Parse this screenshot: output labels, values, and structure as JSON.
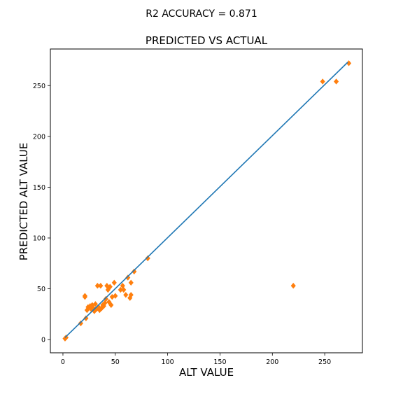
{
  "suptitle": "R2 ACCURACY = 0.871",
  "chart_data": {
    "type": "scatter",
    "title": "PREDICTED VS ACTUAL",
    "xlabel": "ALT VALUE",
    "ylabel": "PREDICTED ALT VALUE",
    "xlim": [
      -12,
      286
    ],
    "ylim": [
      -13,
      286
    ],
    "xticks": [
      0,
      50,
      100,
      150,
      200,
      250
    ],
    "yticks": [
      0,
      50,
      100,
      150,
      200,
      250
    ],
    "grid": false,
    "colors": {
      "points": "#ff7f0e",
      "line": "#1f77b4"
    },
    "marker": "diamond",
    "line": {
      "x": [
        2,
        272
      ],
      "y": [
        2,
        273
      ]
    },
    "points": [
      {
        "x": 2,
        "y": 1
      },
      {
        "x": 3,
        "y": 2
      },
      {
        "x": 17,
        "y": 16
      },
      {
        "x": 21,
        "y": 42
      },
      {
        "x": 21,
        "y": 43
      },
      {
        "x": 22,
        "y": 21
      },
      {
        "x": 23,
        "y": 29
      },
      {
        "x": 24,
        "y": 32
      },
      {
        "x": 26,
        "y": 33
      },
      {
        "x": 27,
        "y": 30
      },
      {
        "x": 28,
        "y": 34
      },
      {
        "x": 29,
        "y": 31
      },
      {
        "x": 30,
        "y": 28
      },
      {
        "x": 31,
        "y": 35
      },
      {
        "x": 32,
        "y": 30
      },
      {
        "x": 33,
        "y": 53
      },
      {
        "x": 34,
        "y": 32
      },
      {
        "x": 35,
        "y": 29
      },
      {
        "x": 36,
        "y": 53
      },
      {
        "x": 37,
        "y": 31
      },
      {
        "x": 38,
        "y": 34
      },
      {
        "x": 39,
        "y": 33
      },
      {
        "x": 40,
        "y": 36
      },
      {
        "x": 41,
        "y": 40
      },
      {
        "x": 42,
        "y": 53
      },
      {
        "x": 43,
        "y": 49
      },
      {
        "x": 44,
        "y": 37
      },
      {
        "x": 45,
        "y": 52
      },
      {
        "x": 46,
        "y": 34
      },
      {
        "x": 47,
        "y": 42
      },
      {
        "x": 49,
        "y": 56
      },
      {
        "x": 50,
        "y": 43
      },
      {
        "x": 55,
        "y": 49
      },
      {
        "x": 57,
        "y": 53
      },
      {
        "x": 58,
        "y": 49
      },
      {
        "x": 60,
        "y": 44
      },
      {
        "x": 62,
        "y": 61
      },
      {
        "x": 64,
        "y": 41
      },
      {
        "x": 65,
        "y": 44
      },
      {
        "x": 65,
        "y": 56
      },
      {
        "x": 68,
        "y": 67
      },
      {
        "x": 81,
        "y": 80
      },
      {
        "x": 220,
        "y": 53
      },
      {
        "x": 248,
        "y": 254
      },
      {
        "x": 261,
        "y": 254
      },
      {
        "x": 273,
        "y": 272
      }
    ]
  }
}
